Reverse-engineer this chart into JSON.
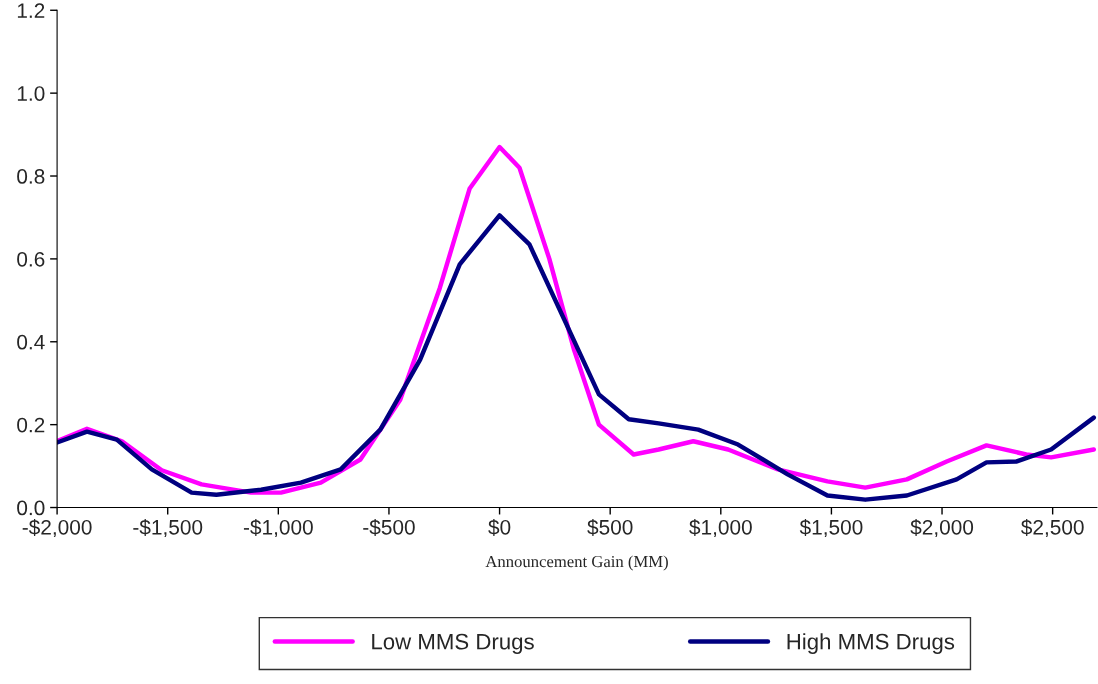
{
  "chart_data": {
    "type": "line",
    "xlabel": "Announcement Gain (MM)",
    "xlim": [
      -2000,
      2700
    ],
    "xticks": [
      {
        "value": -2000,
        "label": "-$2,000"
      },
      {
        "value": -1500,
        "label": "-$1,500"
      },
      {
        "value": -1000,
        "label": "-$1,000"
      },
      {
        "value": -500,
        "label": "-$500"
      },
      {
        "value": 0,
        "label": "$0"
      },
      {
        "value": 500,
        "label": "$500"
      },
      {
        "value": 1000,
        "label": "$1,000"
      },
      {
        "value": 1500,
        "label": "$1,500"
      },
      {
        "value": 2000,
        "label": "$2,000"
      },
      {
        "value": 2500,
        "label": "$2,500"
      }
    ],
    "ylim": [
      0,
      1.2
    ],
    "yticks": [
      {
        "value": 0,
        "label": "0.0"
      },
      0.2,
      0.4,
      0.6,
      0.8,
      {
        "value": 1,
        "label": "1.0"
      },
      1.2
    ],
    "grid": false,
    "legend": "bottom",
    "marker": "none",
    "line_style": "solid",
    "series": [
      {
        "name": "Low MMS Drugs",
        "color": "#ff00ff",
        "x": [
          -2000,
          -1865,
          -1707,
          -1527,
          -1347,
          -1123,
          -988,
          -808,
          -629,
          -449,
          -270,
          -135,
          0,
          90,
          225,
          337,
          449,
          606,
          719,
          876,
          1033,
          1258,
          1482,
          1653,
          1841,
          2021,
          2201,
          2381,
          2493,
          2686
        ],
        "values": [
          0.16,
          0.19,
          0.16,
          0.09,
          0.056,
          0.036,
          0.036,
          0.06,
          0.116,
          0.26,
          0.53,
          0.77,
          0.87,
          0.82,
          0.6,
          0.38,
          0.2,
          0.128,
          0.14,
          0.16,
          0.14,
          0.092,
          0.063,
          0.048,
          0.068,
          0.111,
          0.15,
          0.128,
          0.121,
          0.14
        ]
      },
      {
        "name": "High MMS Drugs",
        "color": "#000080",
        "x": [
          -2000,
          -1865,
          -1730,
          -1572,
          -1392,
          -1280,
          -1078,
          -898,
          -718,
          -539,
          -359,
          -180,
          0,
          135,
          292,
          449,
          584,
          719,
          898,
          1078,
          1302,
          1482,
          1653,
          1841,
          2066,
          2201,
          2335,
          2493,
          2686
        ],
        "values": [
          0.157,
          0.183,
          0.164,
          0.092,
          0.036,
          0.031,
          0.043,
          0.06,
          0.092,
          0.188,
          0.357,
          0.587,
          0.705,
          0.635,
          0.454,
          0.273,
          0.213,
          0.203,
          0.188,
          0.152,
          0.08,
          0.029,
          0.019,
          0.029,
          0.068,
          0.109,
          0.111,
          0.14,
          0.217
        ]
      }
    ]
  }
}
